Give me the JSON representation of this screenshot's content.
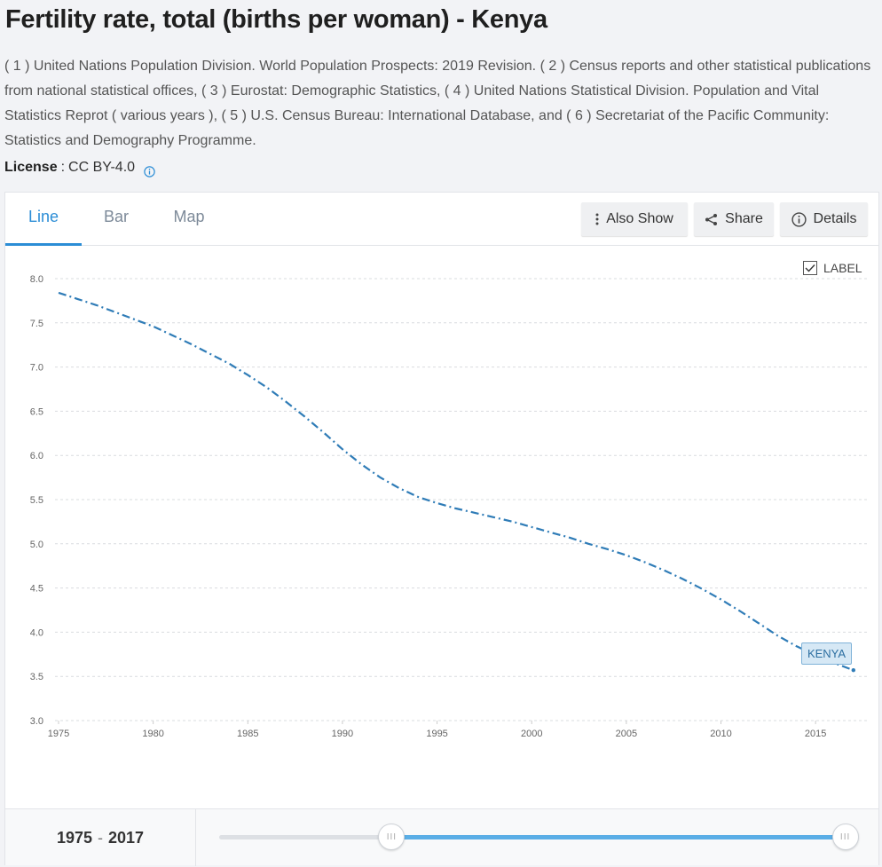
{
  "title": "Fertility rate, total (births per woman) - Kenya",
  "source_text": "( 1 ) United Nations Population Division. World Population Prospects: 2019 Revision. ( 2 ) Census reports and other statistical publications from national statistical offices, ( 3 ) Eurostat: Demographic Statistics, ( 4 ) United Nations Statistical Division. Population and Vital Statistics Reprot ( various years ), ( 5 ) U.S. Census Bureau: International Database, and ( 6 ) Secretariat of the Pacific Community: Statistics and Demography Programme.",
  "license": {
    "key": "License",
    "separator": ":",
    "value": "CC BY-4.0"
  },
  "tabs": [
    {
      "label": "Line",
      "active": true
    },
    {
      "label": "Bar",
      "active": false
    },
    {
      "label": "Map",
      "active": false
    }
  ],
  "toolbar": {
    "also_show": "Also Show",
    "share": "Share",
    "details": "Details"
  },
  "label_toggle": {
    "text": "LABEL",
    "checked": true
  },
  "range": {
    "start": "1975",
    "separator": "-",
    "end": "2017",
    "start_fraction": 0.27,
    "end_fraction": 0.98
  },
  "colors": {
    "accent": "#2b8dd6",
    "series": "#2f7cb7",
    "label_bg": "#d6e8f5"
  },
  "icons": {
    "also_show": "vertical-dots-icon",
    "share": "share-icon",
    "details": "info-icon",
    "license_info": "info-icon",
    "checkbox": "checkmark-icon"
  },
  "chart_data": {
    "type": "line",
    "title": "",
    "xlabel": "",
    "ylabel": "",
    "xlim": [
      1975,
      2017
    ],
    "ylim": [
      3.0,
      8.0
    ],
    "x_ticks": [
      "1975",
      "1980",
      "1985",
      "1990",
      "1995",
      "2000",
      "2005",
      "2010",
      "2015"
    ],
    "y_ticks": [
      "3.0",
      "3.5",
      "4.0",
      "4.5",
      "5.0",
      "5.5",
      "6.0",
      "6.5",
      "7.0",
      "7.5",
      "8.0"
    ],
    "grid": true,
    "line_style": "dash-dot",
    "series": [
      {
        "name": "KENYA",
        "x": [
          1975,
          1976,
          1977,
          1978,
          1979,
          1980,
          1981,
          1982,
          1983,
          1984,
          1985,
          1986,
          1987,
          1988,
          1989,
          1990,
          1991,
          1992,
          1993,
          1994,
          1995,
          1996,
          1997,
          1998,
          1999,
          2000,
          2001,
          2002,
          2003,
          2004,
          2005,
          2006,
          2007,
          2008,
          2009,
          2010,
          2011,
          2012,
          2013,
          2014,
          2015,
          2016,
          2017
        ],
        "values": [
          7.84,
          7.77,
          7.7,
          7.62,
          7.54,
          7.46,
          7.36,
          7.26,
          7.15,
          7.04,
          6.91,
          6.77,
          6.61,
          6.44,
          6.26,
          6.07,
          5.9,
          5.75,
          5.63,
          5.53,
          5.46,
          5.4,
          5.35,
          5.3,
          5.25,
          5.19,
          5.13,
          5.07,
          5.0,
          4.94,
          4.87,
          4.79,
          4.7,
          4.6,
          4.49,
          4.37,
          4.24,
          4.1,
          3.96,
          3.84,
          3.74,
          3.65,
          3.57
        ]
      }
    ]
  }
}
